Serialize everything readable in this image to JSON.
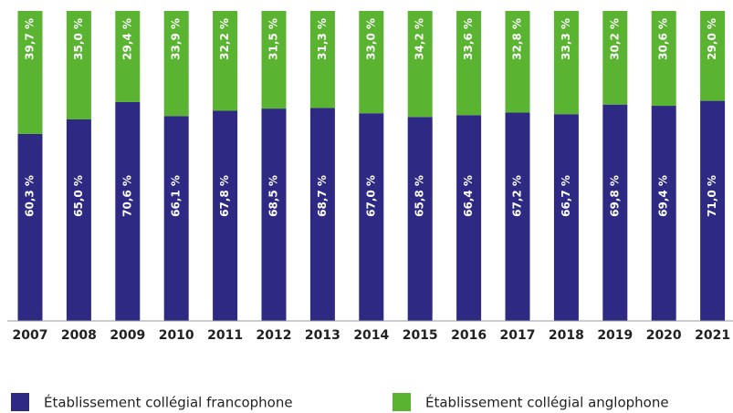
{
  "chart_data": {
    "type": "stacked_bar",
    "categories": [
      "2007",
      "2008",
      "2009",
      "2010",
      "2011",
      "2012",
      "2013",
      "2014",
      "2015",
      "2016",
      "2017",
      "2018",
      "2019",
      "2020",
      "2021"
    ],
    "series": [
      {
        "name": "Établissement collégial francophone",
        "color": "#2e2a83",
        "values": [
          60.3,
          65.0,
          70.6,
          66.1,
          67.8,
          68.5,
          68.7,
          67.0,
          65.8,
          66.4,
          67.2,
          66.7,
          69.8,
          69.4,
          71.0
        ],
        "value_labels": [
          "60,3 %",
          "65,0 %",
          "70,6 %",
          "66,1 %",
          "67,8 %",
          "68,5 %",
          "68,7 %",
          "67,0 %",
          "65,8 %",
          "66,4 %",
          "67,2 %",
          "66,7 %",
          "69,8 %",
          "69,4 %",
          "71,0 %"
        ]
      },
      {
        "name": "Établissement collégial anglophone",
        "color": "#5ab432",
        "values": [
          39.7,
          35.0,
          29.4,
          33.9,
          32.2,
          31.5,
          31.3,
          33.0,
          34.2,
          33.6,
          32.8,
          33.3,
          30.2,
          30.6,
          29.0
        ],
        "value_labels": [
          "39,7 %",
          "35,0 %",
          "29,4 %",
          "33,9 %",
          "32,2 %",
          "31,5 %",
          "31,3 %",
          "33,0 %",
          "34,2 %",
          "33,6 %",
          "32,8 %",
          "33,3 %",
          "30,2 %",
          "30,6 %",
          "29,0 %"
        ]
      }
    ],
    "legend": "bottom"
  }
}
